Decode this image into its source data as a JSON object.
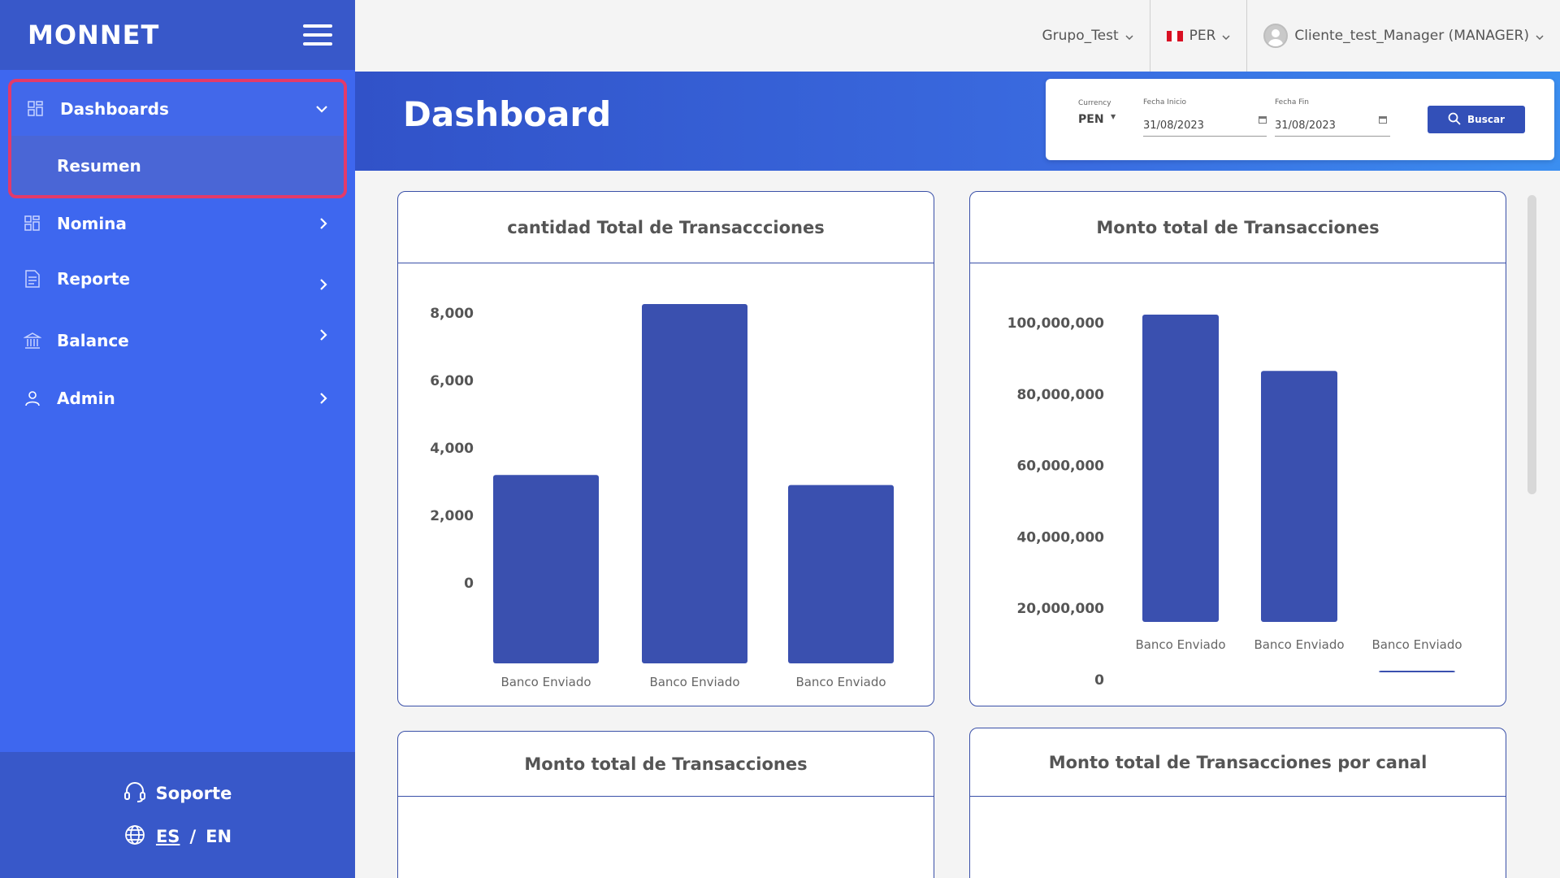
{
  "sidebar": {
    "logo": "MONNET",
    "menu": {
      "dashboards": "Dashboards",
      "resumen": "Resumen",
      "nomina": "Nomina",
      "reporte": "Reporte",
      "balance": "Balance",
      "admin": "Admin"
    },
    "footer": {
      "support": "Soporte",
      "lang_es": "ES",
      "lang_sep": "/",
      "lang_en": "EN"
    }
  },
  "topbar": {
    "group": "Grupo_Test",
    "country": "PER",
    "user": "Cliente_test_Manager (MANAGER)"
  },
  "banner": {
    "title": "Dashboard"
  },
  "filters": {
    "currency_label": "Currency",
    "currency_value": "PEN",
    "start_label": "Fecha Inicio",
    "start_value": "31/08/2023",
    "end_label": "Fecha Fin",
    "end_value": "31/08/2023",
    "search_button": "Buscar"
  },
  "cards": [
    {
      "title": "cantidad Total de Transaccciones"
    },
    {
      "title": "Monto total de Transacciones"
    },
    {
      "title": "Monto total de Transacciones"
    },
    {
      "title": "Monto total de Transacciones por canal"
    }
  ],
  "colors": {
    "sidebar": "#3e67ef",
    "sidebar_dark": "#3858c9",
    "highlight_border": "#e33a6a",
    "bar": "#3a50af"
  },
  "chart_data": [
    {
      "type": "bar",
      "title": "cantidad Total de Transaccciones",
      "categories": [
        "Banco Enviado",
        "Banco Enviado",
        "Banco Enviado"
      ],
      "values": [
        3200,
        8450,
        2900
      ],
      "ylim": [
        0,
        8000
      ],
      "yticks": [
        0,
        2000,
        4000,
        6000,
        8000
      ],
      "ytick_labels": [
        "0",
        "2,000",
        "4,000",
        "6,000",
        "8,000"
      ],
      "grid": false
    },
    {
      "type": "bar",
      "title": "Monto total de Transacciones",
      "categories": [
        "Banco Enviado",
        "Banco Enviado",
        "Banco Enviado"
      ],
      "values": [
        107000000,
        86500000,
        2500000
      ],
      "ylim": [
        0,
        100000000
      ],
      "yticks": [
        0,
        20000000,
        40000000,
        60000000,
        80000000,
        100000000
      ],
      "ytick_labels": [
        "0",
        "20,000,000",
        "40,000,000",
        "60,000,000",
        "80,000,000",
        "100,000,000"
      ],
      "grid": false
    }
  ]
}
